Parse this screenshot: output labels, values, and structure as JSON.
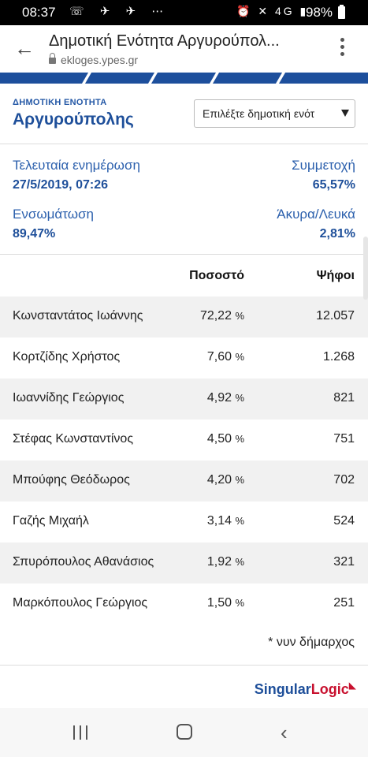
{
  "status_bar": {
    "time": "08:37",
    "notification_icons": "☏ ✈ ✈ ⋯",
    "system_icons": "⏰ ✕ 4G ▮",
    "battery": "98%"
  },
  "browser": {
    "page_title": "Δημοτική Ενότητα Αργυρούπολ...",
    "url": "ekloges.ypes.gr"
  },
  "header": {
    "label": "ΔΗΜΟΤΙΚΗ ΕΝΟΤΗΤΑ",
    "name": "Αργυρούπολης",
    "select_placeholder": "Επιλέξτε δημοτική ενότ"
  },
  "stats": {
    "last_update_label": "Τελευταία ενημέρωση",
    "last_update_value": "27/5/2019, 07:26",
    "turnout_label": "Συμμετοχή",
    "turnout_value": "65,57%",
    "integration_label": "Ενσωμάτωση",
    "integration_value": "89,47%",
    "invalid_label": "Άκυρα/Λευκά",
    "invalid_value": "2,81%"
  },
  "table": {
    "col_percent": "Ποσοστό",
    "col_votes": "Ψήφοι",
    "rows": [
      {
        "name": "Κωνσταντάτος Ιωάννης",
        "percent": "72,22",
        "votes": "12.057"
      },
      {
        "name": "Κορτζίδης Χρήστος",
        "percent": "7,60",
        "votes": "1.268"
      },
      {
        "name": "Ιωαννίδης Γεώργιος",
        "percent": "4,92",
        "votes": "821"
      },
      {
        "name": "Στέφας Κωνσταντίνος",
        "percent": "4,50",
        "votes": "751"
      },
      {
        "name": "Μπούφης Θεόδωρος",
        "percent": "4,20",
        "votes": "702"
      },
      {
        "name": "Γαζής Μιχαήλ",
        "percent": "3,14",
        "votes": "524"
      },
      {
        "name": "Σπυρόπουλος Αθανάσιος",
        "percent": "1,92",
        "votes": "321"
      },
      {
        "name": "Μαρκόπουλος Γεώργιος",
        "percent": "1,50",
        "votes": "251"
      }
    ],
    "percent_unit": "%"
  },
  "footnote": "* νυν δήμαρχος",
  "brand": {
    "part1": "Singular",
    "part2": "Logic",
    "accent_color": "#c8102e",
    "primary_color": "#1e4f9a"
  },
  "navbar": {
    "recent_icon": "recent-apps-icon",
    "home_icon": "home-icon",
    "back_icon": "back-icon"
  }
}
